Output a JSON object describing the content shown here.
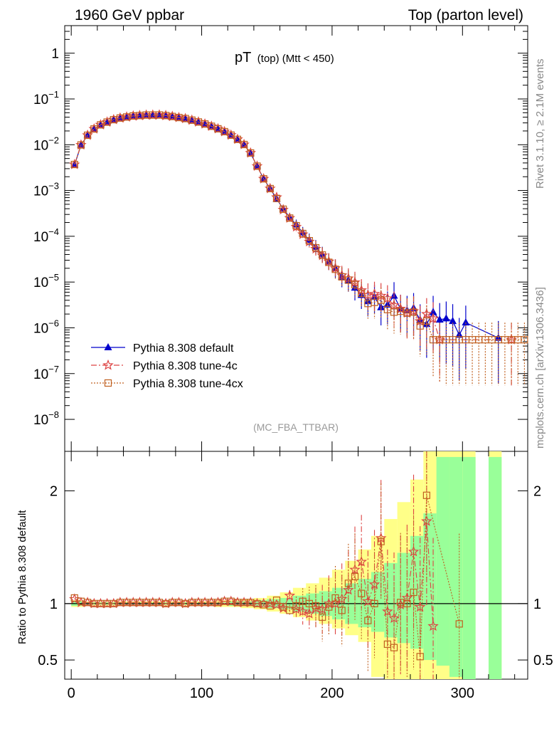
{
  "header": {
    "left": "1960 GeV ppbar",
    "right": "Top (parton level)"
  },
  "plot": {
    "title_main": "pT",
    "title_sub": "(top) (Mtt < 450)",
    "watermark": "(MC_FBA_TTBAR)",
    "side_label_rivet": "Rivet 3.1.10, ≥ 2.1M events",
    "side_label_mcplots": "mcplots.cern.ch [arXiv:1306.3436]",
    "ratio_ylabel": "Ratio to Pythia 8.308 default"
  },
  "colors": {
    "default": "#0000cc",
    "tune4c": "#dd4444",
    "tune4cx": "#c06020",
    "band_inner": "#99ff99",
    "band_outer": "#ffff88"
  },
  "chart_data": [
    {
      "type": "scatter",
      "panel": "main",
      "ylog": true,
      "xlim": [
        -5,
        350
      ],
      "ylim": [
        2e-09,
        4
      ],
      "yticks": [
        {
          "v": 1,
          "label": "1"
        },
        {
          "v": 0.1,
          "label": "10^-1"
        },
        {
          "v": 0.01,
          "label": "10^-2"
        },
        {
          "v": 0.001,
          "label": "10^-3"
        },
        {
          "v": 0.0001,
          "label": "10^-4"
        },
        {
          "v": 1e-05,
          "label": "10^-5"
        },
        {
          "v": 1e-06,
          "label": "10^-6"
        },
        {
          "v": 1e-07,
          "label": "10^-7"
        },
        {
          "v": 1e-08,
          "label": "10^-8"
        }
      ],
      "legend": {
        "placement": "bottom-left"
      },
      "series": [
        {
          "name": "Pythia 8.308 default",
          "marker": "triangle",
          "line": "solid",
          "x": [
            2.5,
            7.5,
            12.5,
            17.5,
            22.5,
            27.5,
            32.5,
            37.5,
            42.5,
            47.5,
            52.5,
            57.5,
            62.5,
            67.5,
            72.5,
            77.5,
            82.5,
            87.5,
            92.5,
            97.5,
            102.5,
            107.5,
            112.5,
            117.5,
            122.5,
            127.5,
            132.5,
            137.5,
            142.5,
            147.5,
            152.5,
            157.5,
            162.5,
            167.5,
            172.5,
            177.5,
            182.5,
            187.5,
            192.5,
            197.5,
            202.5,
            207.5,
            212.5,
            217.5,
            222.5,
            227.5,
            232.5,
            237.5,
            242.5,
            247.5,
            252.5,
            257.5,
            262.5,
            267.5,
            272.5,
            277.5,
            282.5,
            287.5,
            292.5,
            297.5,
            302.5,
            327.5
          ],
          "y": [
            0.0036,
            0.0098,
            0.016,
            0.022,
            0.027,
            0.031,
            0.035,
            0.038,
            0.04,
            0.042,
            0.043,
            0.044,
            0.044,
            0.044,
            0.043,
            0.041,
            0.039,
            0.037,
            0.034,
            0.031,
            0.028,
            0.025,
            0.022,
            0.019,
            0.016,
            0.013,
            0.01,
            0.0065,
            0.0034,
            0.0018,
            0.0011,
            0.00065,
            0.0004,
            0.00026,
            0.00018,
            0.00012,
            8.3e-05,
            5.8e-05,
            4e-05,
            2.8e-05,
            2e-05,
            1.3e-05,
            1.1e-05,
            7.5e-06,
            5.2e-06,
            3.8e-06,
            4.7e-06,
            2.8e-06,
            3.2e-06,
            5e-06,
            2.6e-06,
            2.4e-06,
            2.7e-06,
            1.5e-06,
            1.2e-06,
            2.2e-06,
            1.5e-06,
            1.6e-06,
            1.4e-06,
            7e-07,
            1.3e-06,
            6e-07
          ]
        },
        {
          "name": "Pythia 8.308 tune-4c",
          "marker": "star",
          "line": "dashdot",
          "x": [
            2.5,
            7.5,
            12.5,
            17.5,
            22.5,
            27.5,
            32.5,
            37.5,
            42.5,
            47.5,
            52.5,
            57.5,
            62.5,
            67.5,
            72.5,
            77.5,
            82.5,
            87.5,
            92.5,
            97.5,
            102.5,
            107.5,
            112.5,
            117.5,
            122.5,
            127.5,
            132.5,
            137.5,
            142.5,
            147.5,
            152.5,
            157.5,
            162.5,
            167.5,
            172.5,
            177.5,
            182.5,
            187.5,
            192.5,
            197.5,
            202.5,
            207.5,
            212.5,
            217.5,
            222.5,
            227.5,
            232.5,
            237.5,
            242.5,
            247.5,
            252.5,
            257.5,
            262.5,
            267.5,
            272.5,
            277.5,
            282.5,
            337.5
          ],
          "y": [
            0.0037,
            0.0099,
            0.0161,
            0.0221,
            0.0272,
            0.0312,
            0.0353,
            0.0383,
            0.0404,
            0.0425,
            0.0434,
            0.0445,
            0.0445,
            0.0446,
            0.0434,
            0.0414,
            0.0393,
            0.0373,
            0.0344,
            0.0314,
            0.0284,
            0.0253,
            0.0223,
            0.0193,
            0.0162,
            0.0131,
            0.0101,
            0.0066,
            0.0034,
            0.0018,
            0.0011,
            0.00071,
            0.00038,
            0.00025,
            0.00016,
            0.00011,
            7.6e-05,
            5.3e-05,
            3.8e-05,
            2.8e-05,
            2e-05,
            1.4e-05,
            1.2e-05,
            9.8e-06,
            6.6e-06,
            5.2e-06,
            5.5e-06,
            5e-06,
            4.4e-06,
            3.1e-06,
            2.6e-06,
            2.1e-06,
            2.3e-06,
            1.4e-06,
            2e-06,
            1.6e-06,
            5.5e-07,
            5.5e-07
          ]
        },
        {
          "name": "Pythia 8.308 tune-4cx",
          "marker": "open-square",
          "line": "dotted",
          "x": [
            2.5,
            7.5,
            12.5,
            17.5,
            22.5,
            27.5,
            32.5,
            37.5,
            42.5,
            47.5,
            52.5,
            57.5,
            62.5,
            67.5,
            72.5,
            77.5,
            82.5,
            87.5,
            92.5,
            97.5,
            102.5,
            107.5,
            112.5,
            117.5,
            122.5,
            127.5,
            132.5,
            137.5,
            142.5,
            147.5,
            152.5,
            157.5,
            162.5,
            167.5,
            172.5,
            177.5,
            182.5,
            187.5,
            192.5,
            197.5,
            202.5,
            207.5,
            212.5,
            217.5,
            222.5,
            227.5,
            232.5,
            237.5,
            242.5,
            247.5,
            252.5,
            257.5,
            262.5,
            267.5,
            272.5,
            277.5,
            282.5,
            287.5,
            292.5,
            297.5,
            302.5,
            307.5,
            312.5,
            317.5,
            322.5,
            327.5,
            332.5,
            337.5,
            342.5,
            347.5
          ],
          "y": [
            0.0037,
            0.0099,
            0.0161,
            0.0221,
            0.0272,
            0.0312,
            0.0353,
            0.0383,
            0.0404,
            0.0425,
            0.0434,
            0.0445,
            0.0445,
            0.0446,
            0.0434,
            0.0414,
            0.0393,
            0.0373,
            0.0344,
            0.0314,
            0.0284,
            0.0253,
            0.0223,
            0.0193,
            0.0162,
            0.0131,
            0.0101,
            0.0066,
            0.0034,
            0.0018,
            0.0011,
            0.00067,
            0.00039,
            0.00025,
            0.00017,
            0.000115,
            8e-05,
            5.6e-05,
            3.9e-05,
            2.7e-05,
            1.9e-05,
            1.3e-05,
            1.1e-05,
            8.8e-06,
            5.7e-06,
            3.4e-06,
            3.6e-06,
            4e-06,
            2.5e-06,
            2.2e-06,
            2.3e-06,
            2.1e-06,
            2.2e-06,
            1.1e-06,
            1.4e-06,
            5.5e-07,
            5.5e-07,
            5.5e-07,
            5.5e-07,
            5.5e-07,
            5.5e-07,
            5.5e-07,
            5.5e-07,
            5.5e-07,
            5.5e-07,
            5.5e-07,
            5.5e-07,
            5.5e-07,
            5.5e-07,
            5.5e-07
          ]
        }
      ]
    },
    {
      "type": "scatter",
      "panel": "ratio",
      "xlim": [
        -5,
        350
      ],
      "ylim": [
        0.33,
        2.35
      ],
      "xticks": [
        0,
        100,
        200,
        300
      ],
      "yticks": [
        0.5,
        1,
        2
      ],
      "ylabel": "Ratio to Pythia 8.308 default",
      "reference_line": 1,
      "bands": {
        "x_edges": [
          0,
          10,
          20,
          30,
          40,
          50,
          60,
          70,
          80,
          90,
          100,
          110,
          120,
          130,
          140,
          150,
          160,
          170,
          180,
          190,
          200,
          210,
          220,
          230,
          240,
          250,
          260,
          270,
          280,
          290,
          300,
          310,
          320,
          330
        ],
        "inner_low": [
          0.98,
          0.99,
          0.99,
          0.99,
          0.99,
          0.99,
          0.99,
          0.99,
          0.99,
          0.99,
          0.99,
          0.99,
          0.98,
          0.98,
          0.97,
          0.96,
          0.95,
          0.93,
          0.91,
          0.89,
          0.86,
          0.82,
          0.79,
          0.75,
          0.7,
          0.65,
          0.6,
          0.5,
          0.45,
          0.35,
          0.3,
          null,
          0.3
        ],
        "inner_high": [
          1.02,
          1.01,
          1.01,
          1.01,
          1.01,
          1.01,
          1.01,
          1.01,
          1.01,
          1.01,
          1.01,
          1.01,
          1.02,
          1.02,
          1.03,
          1.04,
          1.05,
          1.07,
          1.09,
          1.11,
          1.14,
          1.18,
          1.22,
          1.28,
          1.36,
          1.45,
          1.6,
          1.8,
          2.3,
          2.3,
          2.3,
          null,
          2.3
        ],
        "outer_low": [
          0.97,
          0.98,
          0.98,
          0.98,
          0.98,
          0.98,
          0.98,
          0.98,
          0.98,
          0.98,
          0.98,
          0.97,
          0.97,
          0.96,
          0.95,
          0.93,
          0.91,
          0.88,
          0.85,
          0.82,
          0.78,
          0.72,
          0.66,
          0.35,
          0.33,
          0.33,
          0.33,
          0.33,
          0.33,
          0.33,
          0.33,
          null,
          0.33
        ],
        "outer_high": [
          1.03,
          1.02,
          1.02,
          1.02,
          1.02,
          1.02,
          1.02,
          1.02,
          1.02,
          1.02,
          1.02,
          1.03,
          1.03,
          1.04,
          1.05,
          1.07,
          1.1,
          1.14,
          1.18,
          1.23,
          1.3,
          1.38,
          1.48,
          1.6,
          1.75,
          1.9,
          2.1,
          2.35,
          2.35,
          2.35,
          2.35,
          null,
          2.35
        ]
      },
      "series": [
        {
          "name": "Pythia 8.308 tune-4c",
          "x": [
            2.5,
            7.5,
            12.5,
            17.5,
            22.5,
            27.5,
            32.5,
            37.5,
            42.5,
            47.5,
            52.5,
            57.5,
            62.5,
            67.5,
            72.5,
            77.5,
            82.5,
            87.5,
            92.5,
            97.5,
            102.5,
            107.5,
            112.5,
            117.5,
            122.5,
            127.5,
            132.5,
            137.5,
            142.5,
            147.5,
            152.5,
            157.5,
            162.5,
            167.5,
            172.5,
            177.5,
            182.5,
            187.5,
            192.5,
            197.5,
            202.5,
            207.5,
            212.5,
            217.5,
            222.5,
            227.5,
            232.5,
            237.5,
            242.5,
            247.5,
            252.5,
            257.5,
            262.5,
            267.5,
            272.5,
            277.5
          ],
          "y": [
            1.04,
            1.01,
            1.01,
            1.0,
            1.0,
            1.0,
            1.0,
            1.01,
            1.01,
            1.01,
            1.01,
            1.01,
            1.01,
            1.01,
            1.0,
            1.01,
            1.01,
            1.0,
            1.01,
            1.01,
            1.01,
            1.01,
            1.01,
            1.02,
            1.02,
            1.01,
            1.01,
            1.01,
            1.0,
            1.0,
            1.0,
            0.99,
            0.96,
            1.07,
            0.95,
            0.93,
            0.91,
            0.96,
            0.95,
            1.0,
            1.0,
            1.04,
            1.12,
            1.3,
            1.37,
            1.02,
            1.17,
            1.58,
            0.93,
            0.87,
            0.99,
            1.05,
            1.46,
            0.97,
            1.73,
            0.8
          ]
        },
        {
          "name": "Pythia 8.308 tune-4cx",
          "x": [
            2.5,
            7.5,
            12.5,
            17.5,
            22.5,
            27.5,
            32.5,
            37.5,
            42.5,
            47.5,
            52.5,
            57.5,
            62.5,
            67.5,
            72.5,
            77.5,
            82.5,
            87.5,
            92.5,
            97.5,
            102.5,
            107.5,
            112.5,
            117.5,
            122.5,
            127.5,
            132.5,
            137.5,
            142.5,
            147.5,
            152.5,
            157.5,
            162.5,
            167.5,
            172.5,
            177.5,
            182.5,
            187.5,
            192.5,
            197.5,
            202.5,
            207.5,
            212.5,
            217.5,
            222.5,
            227.5,
            232.5,
            237.5,
            242.5,
            247.5,
            252.5,
            257.5,
            262.5,
            267.5,
            272.5,
            297.5
          ],
          "y": [
            1.05,
            1.02,
            1.01,
            1.0,
            1.0,
            1.0,
            1.0,
            1.01,
            1.01,
            1.01,
            1.01,
            1.01,
            1.01,
            1.01,
            1.0,
            1.01,
            1.01,
            1.0,
            1.01,
            1.01,
            1.01,
            1.01,
            1.01,
            1.02,
            1.02,
            1.01,
            1.01,
            1.01,
            1.0,
            0.99,
            0.98,
            1.03,
            0.97,
            0.94,
            0.98,
            1.02,
            1.0,
            0.98,
            0.88,
            0.97,
            1.05,
            0.94,
            1.18,
            1.24,
            1.09,
            0.85,
            1.0,
            1.55,
            0.64,
            0.61,
            1.01,
            1.0,
            1.1,
            0.53,
            1.96,
            0.82
          ]
        }
      ]
    }
  ]
}
